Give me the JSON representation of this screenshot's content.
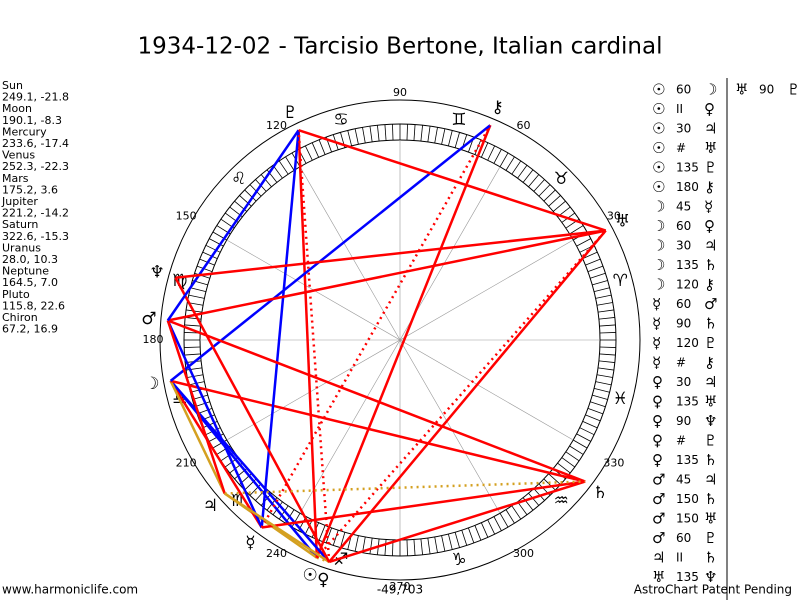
{
  "title": "1934-12-02 - Tarcisio Bertone, Italian cardinal",
  "planets": [
    {
      "name": "Sun",
      "coords": "249.1, -21.8",
      "glyph": "☉"
    },
    {
      "name": "Moon",
      "coords": "190.1, -8.3",
      "glyph": "☽"
    },
    {
      "name": "Mercury",
      "coords": "233.6, -17.4",
      "glyph": "☿"
    },
    {
      "name": "Venus",
      "coords": "252.3, -22.3",
      "glyph": "♀"
    },
    {
      "name": "Mars",
      "coords": "175.2, 3.6",
      "glyph": "♂"
    },
    {
      "name": "Jupiter",
      "coords": "221.2, -14.2",
      "glyph": "♃"
    },
    {
      "name": "Saturn",
      "coords": "322.6, -15.3",
      "glyph": "♄"
    },
    {
      "name": "Uranus",
      "coords": "28.0, 10.3",
      "glyph": "♅"
    },
    {
      "name": "Neptune",
      "coords": "164.5, 7.0",
      "glyph": "♆"
    },
    {
      "name": "Pluto",
      "coords": "115.8, 22.6",
      "glyph": "♇"
    },
    {
      "name": "Chiron",
      "coords": "67.2, 16.9",
      "glyph": "⚷"
    }
  ],
  "signs": [
    "♈",
    "♉",
    "♊",
    "♋",
    "♌",
    "♍",
    "♎",
    "♏",
    "♐",
    "♑",
    "♒",
    "♓"
  ],
  "degree_labels": [
    30,
    60,
    90,
    120,
    150,
    180,
    210,
    240,
    270,
    300,
    330
  ],
  "aspects": [
    [
      "☉",
      "60",
      "☽"
    ],
    [
      "☉",
      "II",
      "♀"
    ],
    [
      "☉",
      "30",
      "♃"
    ],
    [
      "☉",
      "#",
      "♅"
    ],
    [
      "☉",
      "135",
      "♇"
    ],
    [
      "☉",
      "180",
      "⚷"
    ],
    [
      "☽",
      "45",
      "☿"
    ],
    [
      "☽",
      "60",
      "♀"
    ],
    [
      "☽",
      "30",
      "♃"
    ],
    [
      "☽",
      "135",
      "♄"
    ],
    [
      "☽",
      "120",
      "⚷"
    ],
    [
      "☿",
      "60",
      "♂"
    ],
    [
      "☿",
      "90",
      "♄"
    ],
    [
      "☿",
      "120",
      "♇"
    ],
    [
      "☿",
      "#",
      "⚷"
    ],
    [
      "♀",
      "30",
      "♃"
    ],
    [
      "♀",
      "135",
      "♅"
    ],
    [
      "♀",
      "90",
      "♆"
    ],
    [
      "♀",
      "#",
      "♇"
    ],
    [
      "♀",
      "135",
      "♄"
    ],
    [
      "♂",
      "45",
      "♃"
    ],
    [
      "♂",
      "150",
      "♄"
    ],
    [
      "♂",
      "150",
      "♅"
    ],
    [
      "♂",
      "60",
      "♇"
    ],
    [
      "♃",
      "II",
      "♄"
    ],
    [
      "♅",
      "135",
      "♆"
    ]
  ],
  "extra_aspects": [
    [
      "♅",
      "90",
      "♇"
    ]
  ],
  "footer": {
    "left": "www.harmoniclife.com",
    "center": "-49,703",
    "right": "AstroChart Patent Pending"
  }
}
